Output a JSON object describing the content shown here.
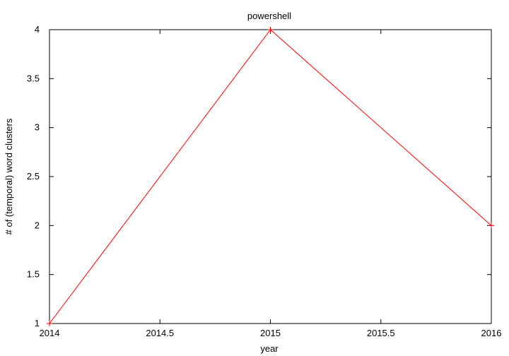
{
  "chart_data": {
    "type": "line",
    "title": "powershell",
    "xlabel": "year",
    "ylabel": "# of (temporal) word clusters",
    "xlim": [
      2014,
      2016
    ],
    "ylim": [
      1,
      4
    ],
    "x_ticks": [
      "2014",
      "2014.5",
      "2015",
      "2015.5",
      "2016"
    ],
    "x_tick_values": [
      2014,
      2014.5,
      2015,
      2015.5,
      2016
    ],
    "y_ticks": [
      "1",
      "1.5",
      "2",
      "2.5",
      "3",
      "3.5",
      "4"
    ],
    "y_tick_values": [
      1,
      1.5,
      2,
      2.5,
      3,
      3.5,
      4
    ],
    "grid": false,
    "legend": "none",
    "series": [
      {
        "color": "#ff0000",
        "marker": "plus",
        "x": [
          2014,
          2015,
          2016
        ],
        "y": [
          1,
          4,
          2
        ]
      }
    ]
  }
}
